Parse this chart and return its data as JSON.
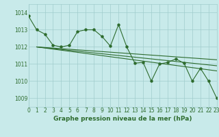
{
  "title": "Graphe pression niveau de la mer (hPa)",
  "bg_color": "#c8eaea",
  "grid_color": "#a0cccc",
  "line_color": "#2d6b2d",
  "xlim": [
    0,
    23
  ],
  "ylim": [
    1008.5,
    1014.5
  ],
  "yticks": [
    1009,
    1010,
    1011,
    1012,
    1013,
    1014
  ],
  "xticks": [
    0,
    1,
    2,
    3,
    4,
    5,
    6,
    7,
    8,
    9,
    10,
    11,
    12,
    13,
    14,
    15,
    16,
    17,
    18,
    19,
    20,
    21,
    22,
    23
  ],
  "series1_x": [
    0,
    1,
    2,
    3,
    4,
    5,
    6,
    7,
    8,
    9,
    10,
    11,
    12,
    13,
    14,
    15,
    16,
    17,
    18,
    19,
    20,
    21,
    22,
    23
  ],
  "series1_y": [
    1013.8,
    1013.0,
    1012.75,
    1012.1,
    1012.0,
    1012.1,
    1012.9,
    1013.0,
    1013.0,
    1012.6,
    1012.05,
    1013.3,
    1012.0,
    1011.05,
    1011.1,
    1010.0,
    1011.0,
    1011.1,
    1011.3,
    1011.05,
    1010.0,
    1010.75,
    1010.0,
    1009.0
  ],
  "line2_x0": 1,
  "line2_x1": 23,
  "line2_y0": 1012.0,
  "line2_y1": 1010.6,
  "line3_x0": 1,
  "line3_x1": 23,
  "line3_y0": 1012.0,
  "line3_y1": 1010.9,
  "line4_x0": 1,
  "line4_x1": 23,
  "line4_y0": 1012.0,
  "line4_y1": 1011.25,
  "title_fontsize": 6.5,
  "tick_fontsize": 5.5
}
